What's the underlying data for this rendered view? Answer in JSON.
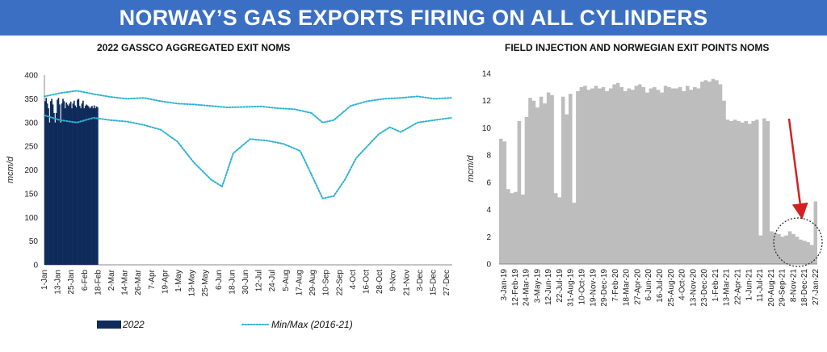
{
  "banner": {
    "title": "NORWAY’S GAS EXPORTS FIRING ON ALL CYLINDERS"
  },
  "colors": {
    "banner": "#3a6fc4",
    "bar2022": "#0f2b5b",
    "minmax": "#2bb3d1",
    "gray": "#bdbdbd",
    "arrow": "#d42020"
  },
  "chart_data": [
    {
      "type": "bar",
      "title": "2022 GASSCO AGGREGATED EXIT NOMS",
      "ylabel": "mcm/d",
      "ylim": [
        0,
        400
      ],
      "yticks": [
        0,
        50,
        100,
        150,
        200,
        250,
        300,
        350,
        400
      ],
      "xlabels": [
        "1-Jan",
        "13-Jan",
        "25-Jan",
        "6-Feb",
        "18-Feb",
        "2-Mar",
        "14-Mar",
        "26-Mar",
        "7-Apr",
        "19-Apr",
        "1-May",
        "13-May",
        "25-May",
        "6-Jun",
        "18-Jun",
        "30-Jun",
        "12-Jul",
        "24-Jul",
        "5-Aug",
        "17-Aug",
        "29-Aug",
        "10-Sep",
        "22-Sep",
        "4-Oct",
        "16-Oct",
        "28-Oct",
        "9-Nov",
        "21-Nov",
        "3-Dec",
        "15-Dec",
        "27-Dec"
      ],
      "legend": [
        "2022",
        "Min/Max (2016-21)"
      ],
      "series": [
        {
          "name": "2022",
          "values": [
            345,
            352,
            340,
            330,
            300,
            345,
            350,
            338,
            320,
            300,
            320,
            348,
            352,
            338,
            300,
            340,
            350,
            345,
            330,
            342,
            338,
            335,
            340,
            344,
            330,
            340,
            346,
            336,
            332,
            348,
            350,
            335,
            330,
            340,
            346,
            330,
            335,
            338,
            336,
            334,
            330,
            332,
            335,
            330,
            336,
            330,
            334,
            332
          ]
        },
        {
          "name": "Min/Max (2016-21)",
          "max": [
            [
              1,
              355
            ],
            [
              15,
              362
            ],
            [
              30,
              367
            ],
            [
              45,
              360
            ],
            [
              60,
              354
            ],
            [
              75,
              350
            ],
            [
              90,
              352
            ],
            [
              105,
              345
            ],
            [
              120,
              340
            ],
            [
              135,
              338
            ],
            [
              150,
              335
            ],
            [
              165,
              332
            ],
            [
              180,
              333
            ],
            [
              195,
              334
            ],
            [
              210,
              330
            ],
            [
              225,
              328
            ],
            [
              240,
              320
            ],
            [
              250,
              300
            ],
            [
              260,
              305
            ],
            [
              275,
              335
            ],
            [
              290,
              345
            ],
            [
              305,
              350
            ],
            [
              320,
              352
            ],
            [
              335,
              355
            ],
            [
              350,
              350
            ],
            [
              365,
              352
            ]
          ],
          "min": [
            [
              1,
              315
            ],
            [
              15,
              305
            ],
            [
              30,
              300
            ],
            [
              45,
              310
            ],
            [
              60,
              305
            ],
            [
              75,
              302
            ],
            [
              90,
              295
            ],
            [
              105,
              285
            ],
            [
              120,
              260
            ],
            [
              135,
              215
            ],
            [
              150,
              180
            ],
            [
              160,
              165
            ],
            [
              170,
              235
            ],
            [
              185,
              265
            ],
            [
              200,
              262
            ],
            [
              215,
              255
            ],
            [
              230,
              240
            ],
            [
              240,
              190
            ],
            [
              250,
              140
            ],
            [
              260,
              145
            ],
            [
              270,
              180
            ],
            [
              280,
              225
            ],
            [
              290,
              250
            ],
            [
              300,
              275
            ],
            [
              310,
              290
            ],
            [
              320,
              280
            ],
            [
              335,
              300
            ],
            [
              350,
              305
            ],
            [
              365,
              310
            ]
          ]
        }
      ]
    },
    {
      "type": "area",
      "title": "FIELD INJECTION AND NORWEGIAN EXIT POINTS NOMS",
      "ylabel": "mcm/d",
      "ylim": [
        0,
        14
      ],
      "yticks": [
        0,
        2,
        4,
        6,
        8,
        10,
        12,
        14
      ],
      "xlabels": [
        "3-Jan-19",
        "12-Feb-19",
        "24-Mar-19",
        "3-May-19",
        "12-Jun-19",
        "22-Jul-19",
        "31-Aug-19",
        "10-Oct-19",
        "19-Nov-19",
        "29-Dec-19",
        "7-Feb-20",
        "18-Mar-20",
        "27-Apr-20",
        "6-Jun-20",
        "16-Jul-20",
        "25-Aug-20",
        "4-Oct-20",
        "13-Nov-20",
        "23-Dec-20",
        "1-Feb-21",
        "13-Mar-21",
        "22-Apr-21",
        "1-Jun-21",
        "11-Jul-21",
        "20-Aug-21",
        "29-Sep-21",
        "8-Nov-21",
        "18-Dec-21",
        "27-Jan-22"
      ],
      "values": [
        9.2,
        9.0,
        5.5,
        5.2,
        5.3,
        10.5,
        5.1,
        10.8,
        12.2,
        12.0,
        11.5,
        12.3,
        11.8,
        12.6,
        12.4,
        5.2,
        4.9,
        12.3,
        11.0,
        12.5,
        4.5,
        12.7,
        13.0,
        13.1,
        12.8,
        12.9,
        13.1,
        12.9,
        13.0,
        12.7,
        12.9,
        13.2,
        13.3,
        13.0,
        12.7,
        12.9,
        12.8,
        13.1,
        13.2,
        13.0,
        12.6,
        12.9,
        13.0,
        12.8,
        12.6,
        13.1,
        13.0,
        12.9,
        12.9,
        13.0,
        12.7,
        13.1,
        12.8,
        13.0,
        12.9,
        13.4,
        13.5,
        13.4,
        13.6,
        13.5,
        13.2,
        12.0,
        10.6,
        10.5,
        10.6,
        10.5,
        10.4,
        10.5,
        10.3,
        10.5,
        10.6,
        2.1,
        10.7,
        10.5,
        2.4,
        2.3,
        2.2,
        2.0,
        2.1,
        2.4,
        2.2,
        2.0,
        1.8,
        1.7,
        1.6,
        1.4,
        4.6
      ]
    }
  ]
}
